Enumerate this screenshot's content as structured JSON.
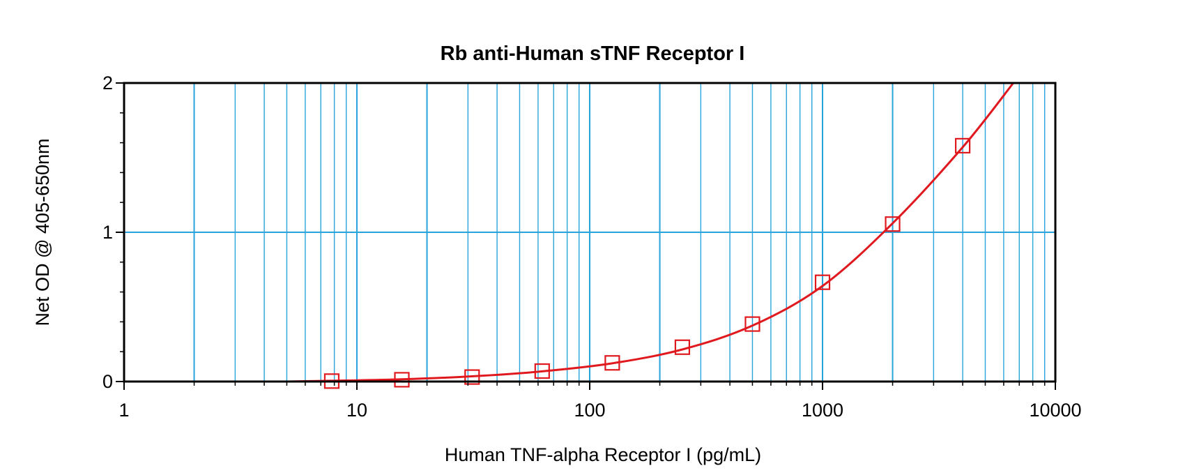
{
  "chart_data": {
    "type": "scatter",
    "title": "Rb anti-Human sTNF Receptor I",
    "xlabel": "Human TNF-alpha Receptor I (pg/mL)",
    "ylabel": "Net OD @ 405-650nm",
    "xscale": "log",
    "xlim": [
      1,
      10000
    ],
    "ylim": [
      0,
      2
    ],
    "x_ticks": [
      "1",
      "10",
      "100",
      "1000",
      "10000"
    ],
    "y_ticks": [
      "0",
      "1",
      "2"
    ],
    "grid": "vertical log gridlines plus horizontal line at 1",
    "colors": {
      "grid": "#29a3db",
      "series": "#e0191f",
      "axes": "#000000"
    },
    "series": [
      {
        "marker": "open-square",
        "x": [
          7.8,
          15.6,
          31.25,
          62.5,
          125,
          250,
          500,
          1000,
          2000,
          4000
        ],
        "y": [
          0.003,
          0.012,
          0.03,
          0.07,
          0.125,
          0.23,
          0.385,
          0.665,
          1.055,
          1.58
        ]
      }
    ],
    "fit_curve": {
      "x": [
        5,
        7.8,
        15.6,
        31.25,
        62.5,
        125,
        250,
        500,
        1000,
        2000,
        4000,
        6600
      ],
      "y": [
        0.0,
        0.005,
        0.015,
        0.035,
        0.068,
        0.122,
        0.215,
        0.375,
        0.64,
        1.06,
        1.57,
        2.0
      ]
    }
  }
}
